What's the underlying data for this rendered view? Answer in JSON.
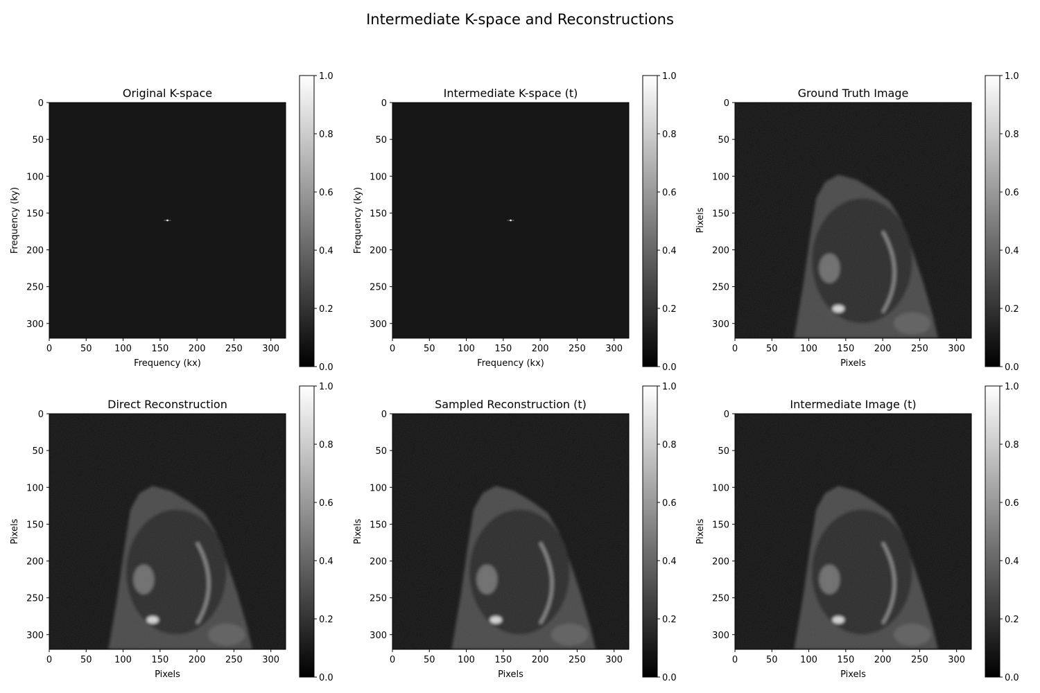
{
  "figure": {
    "suptitle": "Intermediate K-space and Reconstructions"
  },
  "colors": {
    "background": "#ffffff",
    "axes": "#000000",
    "kspace_fill": "#171717",
    "image_fill": "#111111",
    "cmap": "gray"
  },
  "chart_data": [
    {
      "type": "heatmap",
      "title": "Original K-space",
      "xlabel": "Frequency (kx)",
      "ylabel": "Frequency (ky)",
      "xlim": [
        0,
        320
      ],
      "ylim": [
        320,
        0
      ],
      "xticks": [
        0,
        50,
        100,
        150,
        200,
        250,
        300
      ],
      "yticks": [
        0,
        50,
        100,
        150,
        200,
        250,
        300
      ],
      "content": "kspace",
      "colorbar": {
        "range": [
          0,
          1
        ],
        "ticks": [
          "0.0",
          "0.2",
          "0.4",
          "0.6",
          "0.8",
          "1.0"
        ]
      }
    },
    {
      "type": "heatmap",
      "title": "Intermediate K-space (t)",
      "xlabel": "Frequency (kx)",
      "ylabel": "Frequency (ky)",
      "xlim": [
        0,
        320
      ],
      "ylim": [
        320,
        0
      ],
      "xticks": [
        0,
        50,
        100,
        150,
        200,
        250,
        300
      ],
      "yticks": [
        0,
        50,
        100,
        150,
        200,
        250,
        300
      ],
      "content": "kspace",
      "colorbar": {
        "range": [
          0,
          1
        ],
        "ticks": [
          "0.0",
          "0.2",
          "0.4",
          "0.6",
          "0.8",
          "1.0"
        ]
      }
    },
    {
      "type": "heatmap",
      "title": "Ground Truth Image",
      "xlabel": "Pixels",
      "ylabel": "Pixels",
      "xlim": [
        0,
        320
      ],
      "ylim": [
        320,
        0
      ],
      "xticks": [
        0,
        50,
        100,
        150,
        200,
        250,
        300
      ],
      "yticks": [
        0,
        50,
        100,
        150,
        200,
        250,
        300
      ],
      "content": "mri",
      "colorbar": {
        "range": [
          0,
          1
        ],
        "ticks": [
          "0.0",
          "0.2",
          "0.4",
          "0.6",
          "0.8",
          "1.0"
        ]
      }
    },
    {
      "type": "heatmap",
      "title": "Direct Reconstruction",
      "xlabel": "Pixels",
      "ylabel": "Pixels",
      "xlim": [
        0,
        320
      ],
      "ylim": [
        320,
        0
      ],
      "xticks": [
        0,
        50,
        100,
        150,
        200,
        250,
        300
      ],
      "yticks": [
        0,
        50,
        100,
        150,
        200,
        250,
        300
      ],
      "content": "mri",
      "colorbar": {
        "range": [
          0,
          1
        ],
        "ticks": [
          "0.0",
          "0.2",
          "0.4",
          "0.6",
          "0.8",
          "1.0"
        ]
      }
    },
    {
      "type": "heatmap",
      "title": "Sampled Reconstruction (t)",
      "xlabel": "Pixels",
      "ylabel": "Pixels",
      "xlim": [
        0,
        320
      ],
      "ylim": [
        320,
        0
      ],
      "xticks": [
        0,
        50,
        100,
        150,
        200,
        250,
        300
      ],
      "yticks": [
        0,
        50,
        100,
        150,
        200,
        250,
        300
      ],
      "content": "mri",
      "colorbar": {
        "range": [
          0,
          1
        ],
        "ticks": [
          "0.0",
          "0.2",
          "0.4",
          "0.6",
          "0.8",
          "1.0"
        ]
      }
    },
    {
      "type": "heatmap",
      "title": "Intermediate Image (t)",
      "xlabel": "Pixels",
      "ylabel": "Pixels",
      "xlim": [
        0,
        320
      ],
      "ylim": [
        320,
        0
      ],
      "xticks": [
        0,
        50,
        100,
        150,
        200,
        250,
        300
      ],
      "yticks": [
        0,
        50,
        100,
        150,
        200,
        250,
        300
      ],
      "content": "mri",
      "colorbar": {
        "range": [
          0,
          1
        ],
        "ticks": [
          "0.0",
          "0.2",
          "0.4",
          "0.6",
          "0.8",
          "1.0"
        ]
      }
    }
  ]
}
